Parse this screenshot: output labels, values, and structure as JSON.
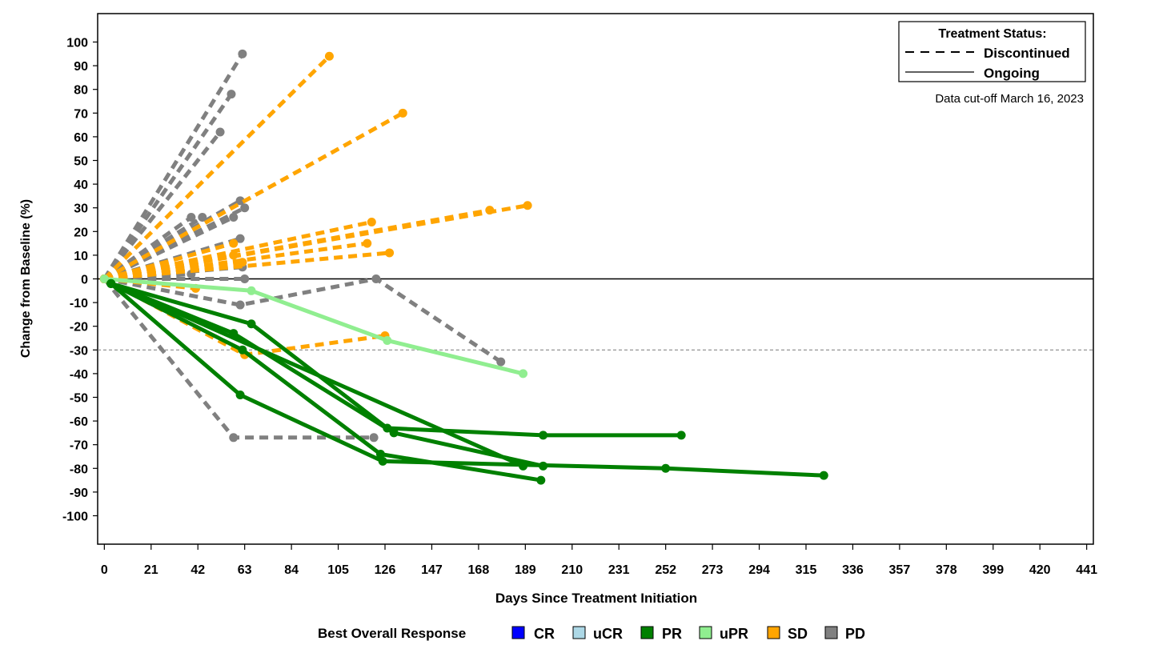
{
  "chart_data": {
    "type": "line",
    "title": "",
    "xlabel": "Days Since Treatment Initiation",
    "ylabel": "Change from Baseline (%)",
    "xlim": [
      -3,
      444
    ],
    "ylim": [
      -112,
      112
    ],
    "xticks": [
      0,
      21,
      42,
      63,
      84,
      105,
      126,
      147,
      168,
      189,
      210,
      231,
      252,
      273,
      294,
      315,
      336,
      357,
      378,
      399,
      420,
      441
    ],
    "yticks": [
      -100,
      -90,
      -80,
      -70,
      -60,
      -50,
      -40,
      -30,
      -20,
      -10,
      0,
      10,
      20,
      30,
      40,
      50,
      60,
      70,
      80,
      90,
      100
    ],
    "reference_lines": [
      {
        "y": 0,
        "style": "solid"
      },
      {
        "y": -30,
        "style": "dotted"
      }
    ],
    "status_legend": {
      "title": "Treatment Status:",
      "items": [
        {
          "label": "Discontinued",
          "style": "dashed"
        },
        {
          "label": "Ongoing",
          "style": "solid"
        }
      ]
    },
    "annotation": "Data cut-off March 16, 2023",
    "response_legend": {
      "title": "Best Overall Response",
      "items": [
        {
          "label": "CR",
          "color": "#0000ff"
        },
        {
          "label": "uCR",
          "color": "#add8e6"
        },
        {
          "label": "PR",
          "color": "#008000"
        },
        {
          "label": "uPR",
          "color": "#90ee90"
        },
        {
          "label": "SD",
          "color": "#ffa500"
        },
        {
          "label": "PD",
          "color": "#808080"
        }
      ]
    },
    "series": [
      {
        "response": "PD",
        "status": "Discontinued",
        "x": [
          0,
          62
        ],
        "y": [
          0,
          95
        ]
      },
      {
        "response": "PD",
        "status": "Discontinued",
        "x": [
          0,
          57
        ],
        "y": [
          0,
          78
        ]
      },
      {
        "response": "PD",
        "status": "Discontinued",
        "x": [
          0,
          52
        ],
        "y": [
          0,
          62
        ]
      },
      {
        "response": "PD",
        "status": "Discontinued",
        "x": [
          0,
          61
        ],
        "y": [
          0,
          33
        ]
      },
      {
        "response": "PD",
        "status": "Discontinued",
        "x": [
          0,
          63
        ],
        "y": [
          0,
          30
        ]
      },
      {
        "response": "PD",
        "status": "Discontinued",
        "x": [
          0,
          39
        ],
        "y": [
          0,
          26
        ]
      },
      {
        "response": "PD",
        "status": "Discontinued",
        "x": [
          0,
          44
        ],
        "y": [
          0,
          26
        ]
      },
      {
        "response": "PD",
        "status": "Discontinued",
        "x": [
          0,
          58
        ],
        "y": [
          0,
          26
        ]
      },
      {
        "response": "PD",
        "status": "Discontinued",
        "x": [
          0,
          61
        ],
        "y": [
          0,
          17
        ]
      },
      {
        "response": "PD",
        "status": "Discontinued",
        "x": [
          0,
          62
        ],
        "y": [
          0,
          5
        ]
      },
      {
        "response": "PD",
        "status": "Discontinued",
        "x": [
          0,
          39
        ],
        "y": [
          0,
          2
        ]
      },
      {
        "response": "PD",
        "status": "Discontinued",
        "x": [
          0,
          63
        ],
        "y": [
          0,
          0
        ]
      },
      {
        "response": "PD",
        "status": "Discontinued",
        "x": [
          0,
          61,
          122,
          178
        ],
        "y": [
          0,
          -11,
          0,
          -35
        ]
      },
      {
        "response": "PD",
        "status": "Discontinued",
        "x": [
          0,
          58,
          121
        ],
        "y": [
          0,
          -67,
          -67
        ]
      },
      {
        "response": "SD",
        "status": "Discontinued",
        "x": [
          0,
          101
        ],
        "y": [
          0,
          94
        ]
      },
      {
        "response": "SD",
        "status": "Discontinued",
        "x": [
          0,
          134
        ],
        "y": [
          0,
          70
        ]
      },
      {
        "response": "SD",
        "status": "Discontinued",
        "x": [
          0,
          190
        ],
        "y": [
          0,
          31
        ]
      },
      {
        "response": "SD",
        "status": "Discontinued",
        "x": [
          0,
          173
        ],
        "y": [
          0,
          29
        ]
      },
      {
        "response": "SD",
        "status": "Discontinued",
        "x": [
          0,
          120
        ],
        "y": [
          0,
          24
        ]
      },
      {
        "response": "SD",
        "status": "Discontinued",
        "x": [
          0,
          118
        ],
        "y": [
          0,
          15
        ]
      },
      {
        "response": "SD",
        "status": "Discontinued",
        "x": [
          0,
          58
        ],
        "y": [
          0,
          15
        ]
      },
      {
        "response": "SD",
        "status": "Discontinued",
        "x": [
          0,
          128
        ],
        "y": [
          0,
          11
        ]
      },
      {
        "response": "SD",
        "status": "Discontinued",
        "x": [
          0,
          58
        ],
        "y": [
          0,
          10
        ]
      },
      {
        "response": "SD",
        "status": "Discontinued",
        "x": [
          0,
          62
        ],
        "y": [
          0,
          7
        ]
      },
      {
        "response": "SD",
        "status": "Discontinued",
        "x": [
          0,
          41
        ],
        "y": [
          0,
          -4
        ]
      },
      {
        "response": "SD",
        "status": "Discontinued",
        "x": [
          0,
          63,
          126
        ],
        "y": [
          0,
          -32,
          -24
        ]
      },
      {
        "response": "uPR",
        "status": "Ongoing",
        "x": [
          0,
          66,
          127,
          188
        ],
        "y": [
          0,
          -5,
          -26,
          -40
        ]
      },
      {
        "response": "PR",
        "status": "Ongoing",
        "x": [
          3,
          66,
          127,
          197,
          259
        ],
        "y": [
          -2,
          -19,
          -63,
          -66,
          -66
        ]
      },
      {
        "response": "PR",
        "status": "Ongoing",
        "x": [
          3,
          58,
          130,
          197
        ],
        "y": [
          -2,
          -23,
          -65,
          -79
        ]
      },
      {
        "response": "PR",
        "status": "Ongoing",
        "x": [
          3,
          62,
          124,
          196
        ],
        "y": [
          -2,
          -30,
          -74,
          -85
        ]
      },
      {
        "response": "PR",
        "status": "Ongoing",
        "x": [
          3,
          61,
          125,
          252,
          323
        ],
        "y": [
          -2,
          -49,
          -77,
          -80,
          -83
        ]
      },
      {
        "response": "PR",
        "status": "Ongoing",
        "x": [
          3,
          188
        ],
        "y": [
          -2,
          -79
        ]
      }
    ]
  }
}
